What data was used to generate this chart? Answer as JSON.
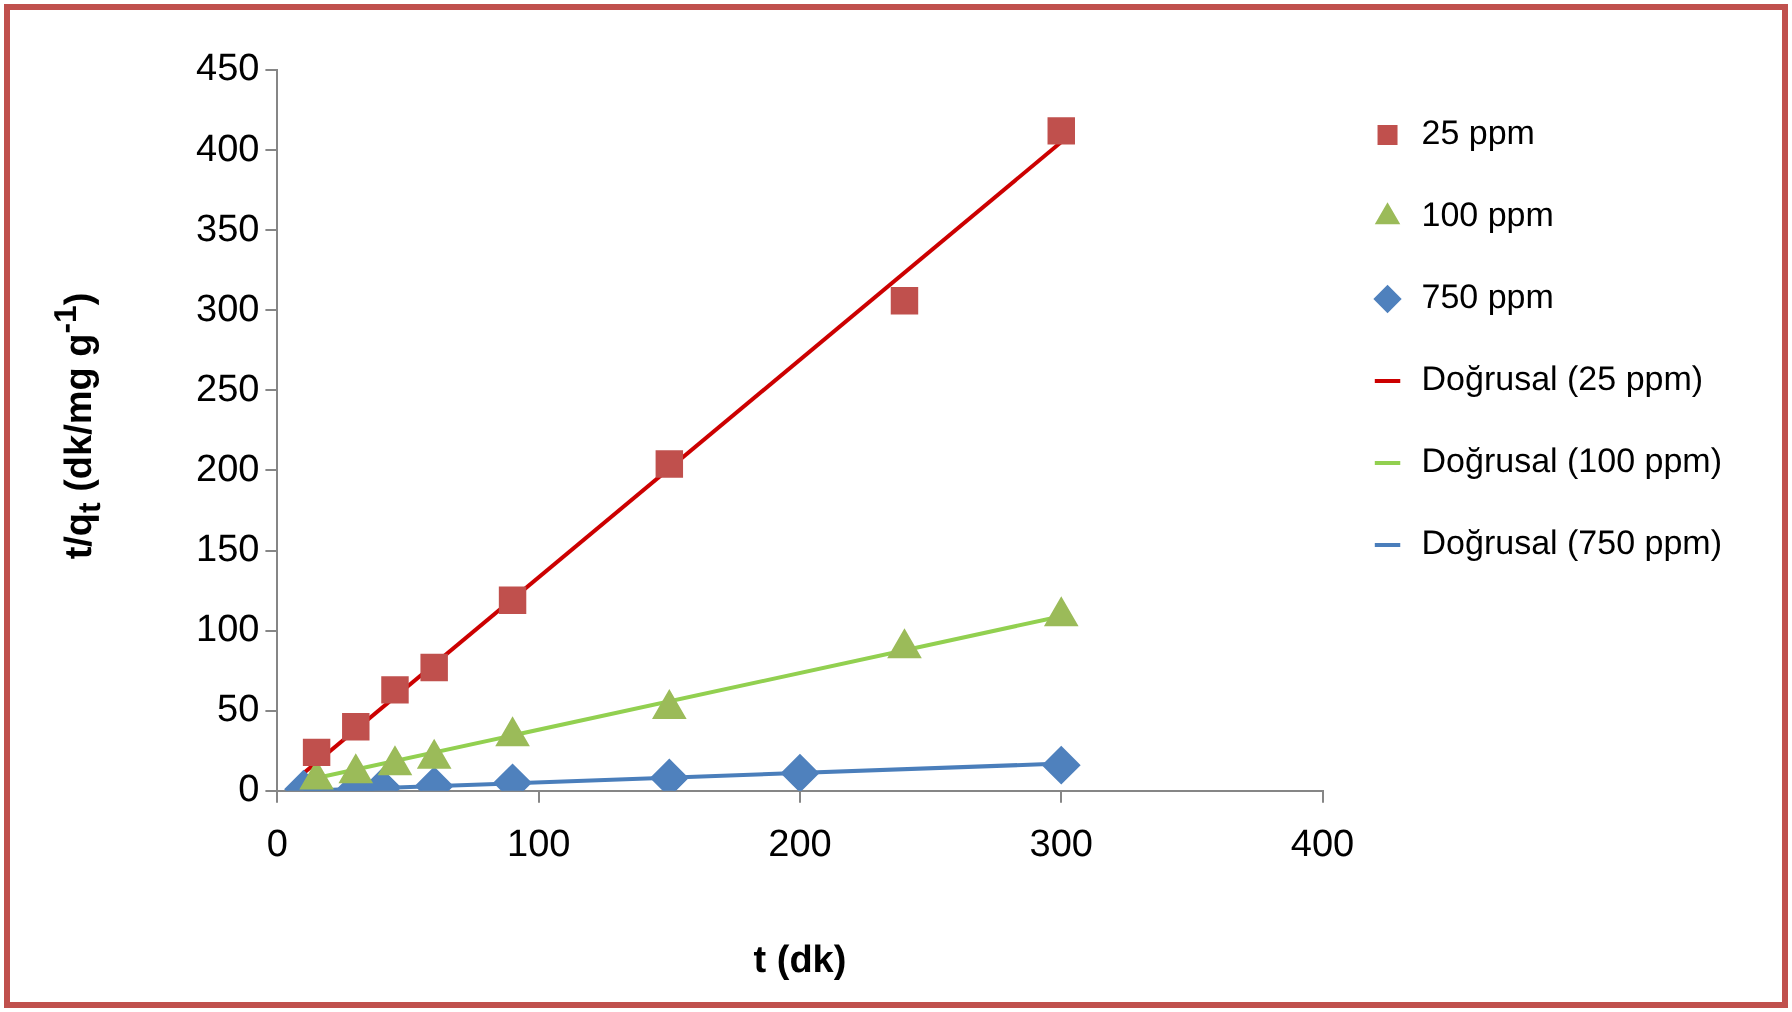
{
  "chart_data": {
    "type": "scatter",
    "xlabel": "t (dk)",
    "ylabel": "t/q$_{t}$ (dk/mg g$^{-1}$)",
    "xlim": [
      0,
      400
    ],
    "xticks": [
      0,
      100,
      200,
      300,
      400
    ],
    "ylim": [
      0,
      450
    ],
    "yticks": [
      0,
      50,
      100,
      150,
      200,
      250,
      300,
      350,
      400,
      450
    ],
    "grid": false,
    "legend": "right",
    "series": [
      {
        "name": "25 ppm",
        "color": "#c0504d",
        "marker": "square",
        "x": [
          15,
          30,
          45,
          60,
          90,
          150,
          240,
          300
        ],
        "values": [
          24,
          40,
          63,
          77,
          119,
          204,
          306,
          412
        ]
      },
      {
        "name": "100 ppm",
        "color": "#9bbb59",
        "marker": "triangle",
        "x": [
          15,
          30,
          45,
          60,
          90,
          150,
          240,
          300
        ],
        "values": [
          7,
          11,
          16,
          20,
          34,
          51,
          89,
          109
        ]
      },
      {
        "name": "750 ppm",
        "color": "#4f81bd",
        "marker": "diamond",
        "x": [
          10,
          30,
          40,
          60,
          90,
          150,
          200,
          300
        ],
        "values": [
          1,
          1,
          2,
          3,
          5,
          8,
          11,
          16
        ]
      },
      {
        "name": "Doğrusal (25 ppm)",
        "type": "line",
        "color": "#cc0000",
        "marker": "none",
        "x": [
          10,
          300
        ],
        "values": [
          11,
          405
        ]
      },
      {
        "name": "Doğrusal (100 ppm)",
        "type": "line",
        "color": "#92d050",
        "marker": "none",
        "x": [
          15,
          300
        ],
        "values": [
          8,
          109
        ]
      },
      {
        "name": "Doğrusal (750 ppm)",
        "type": "line",
        "color": "#4a7ebb",
        "marker": "none",
        "x": [
          10,
          300
        ],
        "values": [
          0,
          17
        ]
      }
    ]
  }
}
